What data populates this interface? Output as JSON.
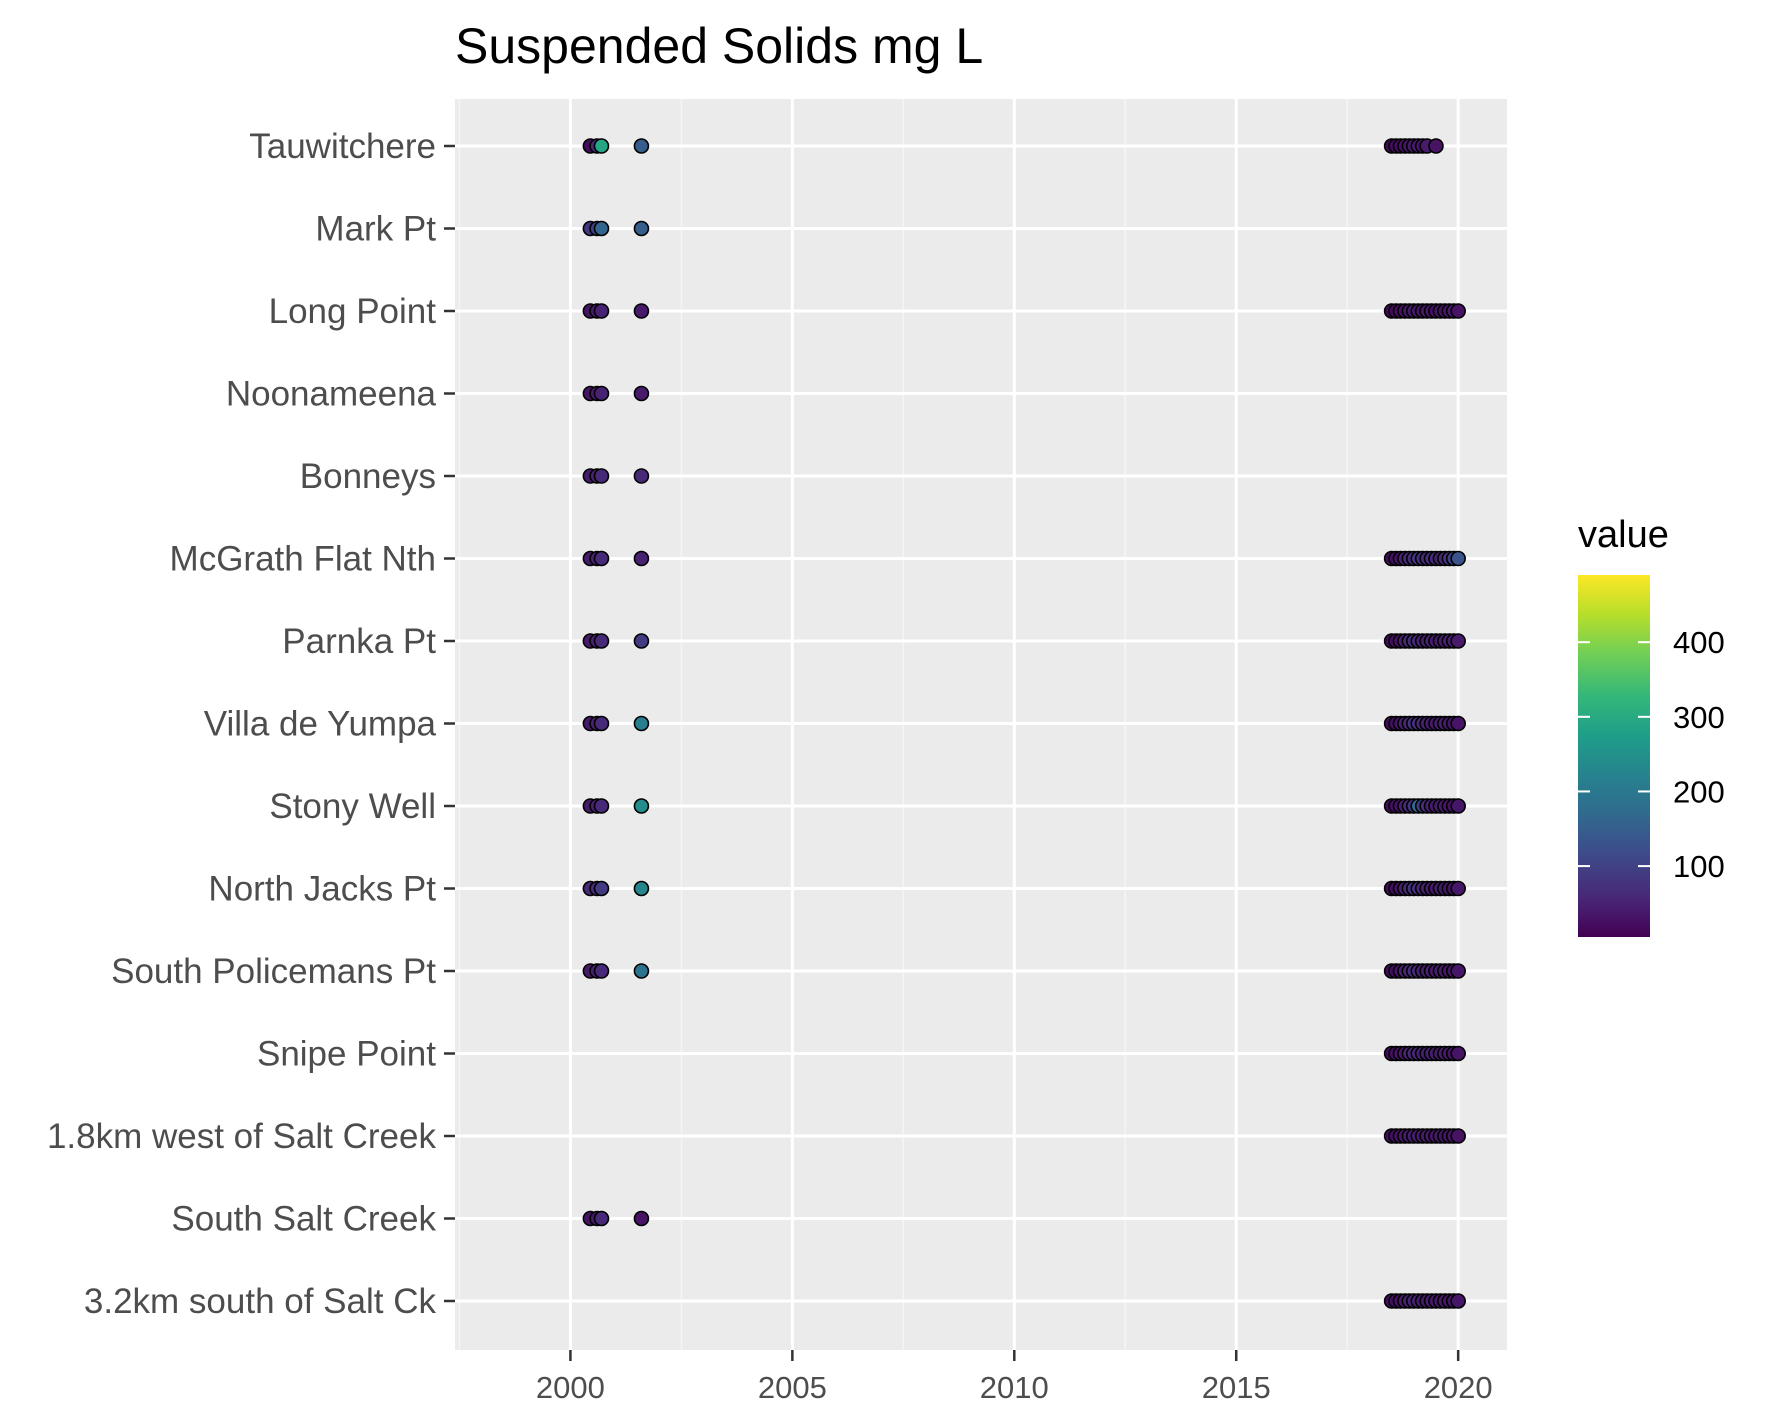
{
  "chart_data": {
    "type": "scatter",
    "title": "Suspended Solids mg L",
    "xlabel": "",
    "ylabel": "",
    "xlim": [
      1997.4,
      2021.1
    ],
    "x_ticks": [
      2000,
      2005,
      2010,
      2015,
      2020
    ],
    "x_minor_ticks": [
      1997.5,
      2002.5,
      2007.5,
      2012.5,
      2017.5
    ],
    "grid": true,
    "legend": {
      "title": "value",
      "position": "right",
      "ticks": [
        100,
        200,
        300,
        400
      ],
      "range": [
        5,
        490
      ]
    },
    "colors": {
      "panel": "#ebebeb",
      "grid_major": "#ffffff",
      "grid_minor": "#f5f5f5",
      "point_outline": "#000000",
      "colorbar_low": "#440154",
      "colorbar_high": "#fde725"
    },
    "sites": [
      "Tauwitchere",
      "Mark Pt",
      "Long Point",
      "Noonameena",
      "Bonneys",
      "McGrath Flat Nth",
      "Parnka Pt",
      "Villa de Yumpa",
      "Stony Well",
      "North Jacks Pt",
      "South Policemans Pt",
      "Snipe Point",
      "1.8km west of Salt Creek",
      "South Salt Creek",
      "3.2km south of Salt Ck"
    ],
    "series": [
      {
        "site": "Tauwitchere",
        "points": [
          [
            2000.45,
            20
          ],
          [
            2000.6,
            60
          ],
          [
            2000.7,
            290
          ],
          [
            2001.6,
            150
          ],
          [
            2018.5,
            15
          ],
          [
            2018.6,
            20
          ],
          [
            2018.7,
            25
          ],
          [
            2018.8,
            30
          ],
          [
            2018.9,
            35
          ],
          [
            2019.0,
            45
          ],
          [
            2019.1,
            40
          ],
          [
            2019.2,
            35
          ],
          [
            2019.3,
            40
          ],
          [
            2019.5,
            30
          ]
        ]
      },
      {
        "site": "Mark Pt",
        "points": [
          [
            2000.45,
            80
          ],
          [
            2000.6,
            100
          ],
          [
            2000.7,
            160
          ],
          [
            2001.6,
            150
          ]
        ]
      },
      {
        "site": "Long Point",
        "points": [
          [
            2000.45,
            30
          ],
          [
            2000.6,
            40
          ],
          [
            2000.7,
            50
          ],
          [
            2001.6,
            40
          ],
          [
            2018.5,
            15
          ],
          [
            2018.6,
            20
          ],
          [
            2018.7,
            25
          ],
          [
            2018.8,
            30
          ],
          [
            2018.9,
            35
          ],
          [
            2019.0,
            40
          ],
          [
            2019.1,
            35
          ],
          [
            2019.2,
            30
          ],
          [
            2019.3,
            40
          ],
          [
            2019.4,
            35
          ],
          [
            2019.5,
            30
          ],
          [
            2019.6,
            35
          ],
          [
            2019.7,
            30
          ],
          [
            2019.8,
            35
          ],
          [
            2019.9,
            40
          ],
          [
            2020.0,
            30
          ]
        ]
      },
      {
        "site": "Noonameena",
        "points": [
          [
            2000.45,
            30
          ],
          [
            2000.6,
            40
          ],
          [
            2000.7,
            50
          ],
          [
            2001.6,
            40
          ]
        ]
      },
      {
        "site": "Bonneys",
        "points": [
          [
            2000.45,
            40
          ],
          [
            2000.6,
            50
          ],
          [
            2000.7,
            60
          ],
          [
            2001.6,
            60
          ]
        ]
      },
      {
        "site": "McGrath Flat Nth",
        "points": [
          [
            2000.45,
            40
          ],
          [
            2000.6,
            50
          ],
          [
            2000.7,
            60
          ],
          [
            2001.6,
            50
          ],
          [
            2018.5,
            20
          ],
          [
            2018.6,
            25
          ],
          [
            2018.7,
            30
          ],
          [
            2018.8,
            50
          ],
          [
            2018.9,
            60
          ],
          [
            2019.0,
            70
          ],
          [
            2019.1,
            80
          ],
          [
            2019.2,
            70
          ],
          [
            2019.3,
            60
          ],
          [
            2019.4,
            70
          ],
          [
            2019.5,
            60
          ],
          [
            2019.6,
            50
          ],
          [
            2019.7,
            60
          ],
          [
            2019.8,
            80
          ],
          [
            2019.9,
            100
          ],
          [
            2020.0,
            130
          ]
        ]
      },
      {
        "site": "Parnka Pt",
        "points": [
          [
            2000.45,
            40
          ],
          [
            2000.6,
            50
          ],
          [
            2000.7,
            60
          ],
          [
            2001.6,
            90
          ],
          [
            2018.5,
            20
          ],
          [
            2018.6,
            25
          ],
          [
            2018.7,
            30
          ],
          [
            2018.8,
            50
          ],
          [
            2018.9,
            60
          ],
          [
            2019.0,
            70
          ],
          [
            2019.1,
            60
          ],
          [
            2019.2,
            50
          ],
          [
            2019.3,
            45
          ],
          [
            2019.4,
            50
          ],
          [
            2019.5,
            45
          ],
          [
            2019.6,
            40
          ],
          [
            2019.7,
            45
          ],
          [
            2019.8,
            50
          ],
          [
            2019.9,
            45
          ],
          [
            2020.0,
            40
          ]
        ]
      },
      {
        "site": "Villa de Yumpa",
        "points": [
          [
            2000.45,
            40
          ],
          [
            2000.6,
            50
          ],
          [
            2000.7,
            60
          ],
          [
            2001.6,
            210
          ],
          [
            2018.5,
            20
          ],
          [
            2018.6,
            25
          ],
          [
            2018.7,
            30
          ],
          [
            2018.8,
            50
          ],
          [
            2018.9,
            60
          ],
          [
            2019.0,
            80
          ],
          [
            2019.1,
            70
          ],
          [
            2019.2,
            60
          ],
          [
            2019.3,
            50
          ],
          [
            2019.4,
            45
          ],
          [
            2019.5,
            40
          ],
          [
            2019.6,
            45
          ],
          [
            2019.7,
            50
          ],
          [
            2019.8,
            40
          ],
          [
            2019.9,
            35
          ],
          [
            2020.0,
            30
          ]
        ]
      },
      {
        "site": "Stony Well",
        "points": [
          [
            2000.45,
            40
          ],
          [
            2000.6,
            50
          ],
          [
            2000.7,
            60
          ],
          [
            2001.6,
            240
          ],
          [
            2018.5,
            20
          ],
          [
            2018.6,
            25
          ],
          [
            2018.7,
            30
          ],
          [
            2018.8,
            50
          ],
          [
            2018.9,
            60
          ],
          [
            2019.0,
            80
          ],
          [
            2019.1,
            180
          ],
          [
            2019.2,
            90
          ],
          [
            2019.3,
            70
          ],
          [
            2019.4,
            50
          ],
          [
            2019.5,
            40
          ],
          [
            2019.6,
            45
          ],
          [
            2019.7,
            40
          ],
          [
            2019.8,
            35
          ],
          [
            2019.9,
            30
          ],
          [
            2020.0,
            35
          ]
        ]
      },
      {
        "site": "North Jacks Pt",
        "points": [
          [
            2000.45,
            60
          ],
          [
            2000.6,
            70
          ],
          [
            2000.7,
            90
          ],
          [
            2001.6,
            230
          ],
          [
            2018.5,
            20
          ],
          [
            2018.6,
            25
          ],
          [
            2018.7,
            30
          ],
          [
            2018.8,
            50
          ],
          [
            2018.9,
            60
          ],
          [
            2019.0,
            80
          ],
          [
            2019.1,
            70
          ],
          [
            2019.2,
            60
          ],
          [
            2019.3,
            50
          ],
          [
            2019.4,
            45
          ],
          [
            2019.5,
            40
          ],
          [
            2019.6,
            45
          ],
          [
            2019.7,
            40
          ],
          [
            2019.8,
            35
          ],
          [
            2019.9,
            30
          ],
          [
            2020.0,
            35
          ]
        ]
      },
      {
        "site": "South Policemans Pt",
        "points": [
          [
            2000.45,
            40
          ],
          [
            2000.6,
            50
          ],
          [
            2000.7,
            60
          ],
          [
            2001.6,
            190
          ],
          [
            2018.5,
            20
          ],
          [
            2018.6,
            25
          ],
          [
            2018.7,
            30
          ],
          [
            2018.8,
            50
          ],
          [
            2018.9,
            60
          ],
          [
            2019.0,
            70
          ],
          [
            2019.1,
            60
          ],
          [
            2019.2,
            50
          ],
          [
            2019.3,
            45
          ],
          [
            2019.4,
            50
          ],
          [
            2019.5,
            40
          ],
          [
            2019.6,
            45
          ],
          [
            2019.7,
            40
          ],
          [
            2019.8,
            35
          ],
          [
            2019.9,
            30
          ],
          [
            2020.0,
            35
          ]
        ]
      },
      {
        "site": "Snipe Point",
        "points": [
          [
            2018.5,
            20
          ],
          [
            2018.6,
            25
          ],
          [
            2018.7,
            30
          ],
          [
            2018.8,
            40
          ],
          [
            2018.9,
            50
          ],
          [
            2019.0,
            60
          ],
          [
            2019.1,
            55
          ],
          [
            2019.2,
            50
          ],
          [
            2019.3,
            45
          ],
          [
            2019.4,
            50
          ],
          [
            2019.5,
            45
          ],
          [
            2019.6,
            40
          ],
          [
            2019.7,
            45
          ],
          [
            2019.8,
            40
          ],
          [
            2019.9,
            35
          ],
          [
            2020.0,
            30
          ]
        ]
      },
      {
        "site": "1.8km west of Salt Creek",
        "points": [
          [
            2018.5,
            20
          ],
          [
            2018.6,
            25
          ],
          [
            2018.7,
            30
          ],
          [
            2018.8,
            40
          ],
          [
            2018.9,
            45
          ],
          [
            2019.0,
            50
          ],
          [
            2019.1,
            45
          ],
          [
            2019.2,
            40
          ],
          [
            2019.3,
            45
          ],
          [
            2019.4,
            40
          ],
          [
            2019.5,
            35
          ],
          [
            2019.6,
            40
          ],
          [
            2019.7,
            35
          ],
          [
            2019.8,
            30
          ],
          [
            2019.9,
            35
          ],
          [
            2020.0,
            30
          ]
        ]
      },
      {
        "site": "South Salt Creek",
        "points": [
          [
            2000.45,
            30
          ],
          [
            2000.6,
            40
          ],
          [
            2000.7,
            60
          ],
          [
            2001.6,
            30
          ]
        ]
      },
      {
        "site": "3.2km south of Salt Ck",
        "points": [
          [
            2018.5,
            20
          ],
          [
            2018.6,
            25
          ],
          [
            2018.7,
            30
          ],
          [
            2018.8,
            40
          ],
          [
            2018.9,
            50
          ],
          [
            2019.0,
            55
          ],
          [
            2019.1,
            50
          ],
          [
            2019.2,
            45
          ],
          [
            2019.3,
            40
          ],
          [
            2019.4,
            45
          ],
          [
            2019.5,
            40
          ],
          [
            2019.6,
            35
          ],
          [
            2019.7,
            40
          ],
          [
            2019.8,
            35
          ],
          [
            2019.9,
            30
          ],
          [
            2020.0,
            35
          ]
        ]
      }
    ]
  }
}
